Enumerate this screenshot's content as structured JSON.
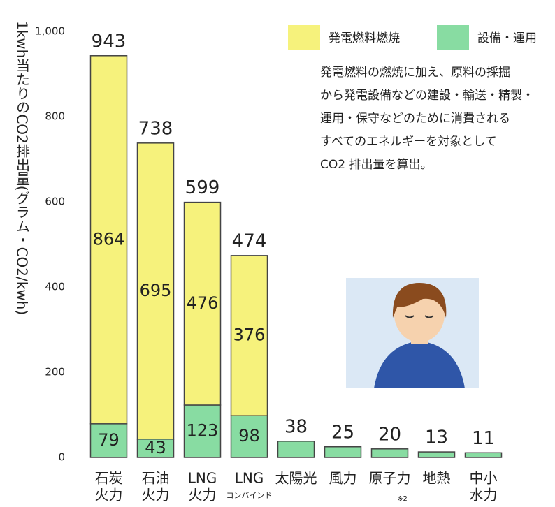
{
  "chart_data": {
    "type": "stacked-bar",
    "y_label": "1kwh当たりのCO2排出量(グラム・CO2/kwh)",
    "categories": [
      [
        "石炭",
        "火力"
      ],
      [
        "石油",
        "火力"
      ],
      [
        "LNG",
        "火力"
      ],
      [
        "LNG",
        "コンバインド"
      ],
      [
        "太陽光"
      ],
      [
        "風力"
      ],
      [
        "原子力"
      ],
      [
        "地熱"
      ],
      [
        "中小",
        "水力"
      ]
    ],
    "category_note": "※2",
    "series": [
      {
        "name": "設備・運用",
        "color": "#88dca2",
        "values": [
          79,
          43,
          123,
          98,
          38,
          25,
          20,
          13,
          11
        ]
      },
      {
        "name": "発電燃料燃焼",
        "color": "#f6f27c",
        "values": [
          864,
          695,
          476,
          376,
          null,
          null,
          null,
          null,
          null
        ]
      }
    ],
    "totals": [
      943,
      738,
      599,
      474,
      38,
      25,
      20,
      13,
      11
    ],
    "ylim": [
      0,
      1000
    ],
    "yticks": [
      0,
      200,
      400,
      600,
      800,
      {
        "value": 1000,
        "label": "1,000"
      }
    ],
    "description": [
      "発電燃料の燃焼に加え、原料の採掘",
      "から発電設備などの建設・輸送・精製・",
      "運用・保守などのために消費される",
      "すべてのエネルギーを対象として",
      "CO2 排出量を算出。"
    ]
  }
}
